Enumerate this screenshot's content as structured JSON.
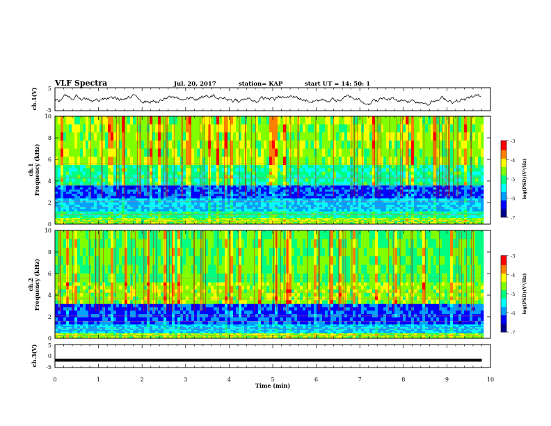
{
  "header": {
    "title": "VLF Spectra",
    "date": "Jul. 20, 2017",
    "station": "station= KAP",
    "start": "start UT = 14: 50: 1"
  },
  "chart_data": [
    {
      "type": "line",
      "panel": "ch1-waveform",
      "ylabel": "ch.1(V)",
      "ylim": [
        -5,
        5
      ],
      "yticks": [
        "5",
        "-5"
      ],
      "xlim": [
        0,
        10
      ],
      "note_series": "noisy waveform oscillating roughly between -2.5 and +2 V throughout 0 to 9.8 min"
    },
    {
      "type": "heatmap",
      "panel": "ch1-spectrogram",
      "ylabel": "ch.1\nFrequency (kHz)",
      "ylabel_lines": [
        "ch.1",
        "Frequency (kHz)"
      ],
      "ylim": [
        0,
        10
      ],
      "yticks": [
        "0",
        "2",
        "4",
        "6",
        "8",
        "10"
      ],
      "xlim": [
        0,
        9.8
      ],
      "colorbar": {
        "label": "log(PSD)(V²/Hz)",
        "range": [
          -7,
          -3
        ],
        "ticks": [
          "-3",
          "-4",
          "-5",
          "-6",
          "-7"
        ]
      },
      "bands_kHz": [
        {
          "from": 0,
          "to": 0.6,
          "level": "high"
        },
        {
          "from": 0.6,
          "to": 1.2,
          "level": "medium"
        },
        {
          "from": 1.2,
          "to": 2.4,
          "level": "low"
        },
        {
          "from": 2.4,
          "to": 3.6,
          "level": "very-low"
        },
        {
          "from": 3.6,
          "to": 5.5,
          "level": "medium"
        },
        {
          "from": 5.5,
          "to": 10,
          "level": "high"
        }
      ]
    },
    {
      "type": "heatmap",
      "panel": "ch2-spectrogram",
      "ylabel": "ch.2\nFrequency (kHz)",
      "ylabel_lines": [
        "ch.2",
        "Frequency (kHz)"
      ],
      "ylim": [
        0,
        10
      ],
      "yticks": [
        "0",
        "2",
        "4",
        "6",
        "8",
        "10"
      ],
      "xlim": [
        0,
        9.8
      ],
      "colorbar": {
        "label": "log(PSD)(V²/Hz)",
        "range": [
          -7,
          -3
        ],
        "ticks": [
          "-3",
          "-4",
          "-5",
          "-6",
          "-7"
        ]
      },
      "bands_kHz": [
        {
          "from": 0,
          "to": 0.5,
          "level": "high"
        },
        {
          "from": 0.5,
          "to": 1.3,
          "level": "low"
        },
        {
          "from": 1.3,
          "to": 3.2,
          "level": "very-low"
        },
        {
          "from": 3.2,
          "to": 5.2,
          "level": "high"
        },
        {
          "from": 5.2,
          "to": 10,
          "level": "medium-high"
        }
      ]
    },
    {
      "type": "line",
      "panel": "ch3-waveform",
      "ylabel": "ch.3(V)",
      "ylim": [
        -5,
        5
      ],
      "yticks": [
        "5",
        "0",
        "-5"
      ],
      "xlim": [
        0,
        10
      ],
      "x": [
        0,
        9.8
      ],
      "y": [
        -1.8,
        -1.8
      ]
    }
  ],
  "xaxis": {
    "label": "Time (min)",
    "ticks": [
      "0",
      "1",
      "2",
      "3",
      "4",
      "5",
      "6",
      "7",
      "8",
      "9",
      "10"
    ],
    "range": [
      0,
      10
    ]
  },
  "colors": {
    "scale": [
      "#000090",
      "#0000ff",
      "#00a0ff",
      "#00ffff",
      "#00ff80",
      "#80ff00",
      "#ffff00",
      "#ff8000",
      "#ff0000",
      "#ffffff"
    ]
  }
}
